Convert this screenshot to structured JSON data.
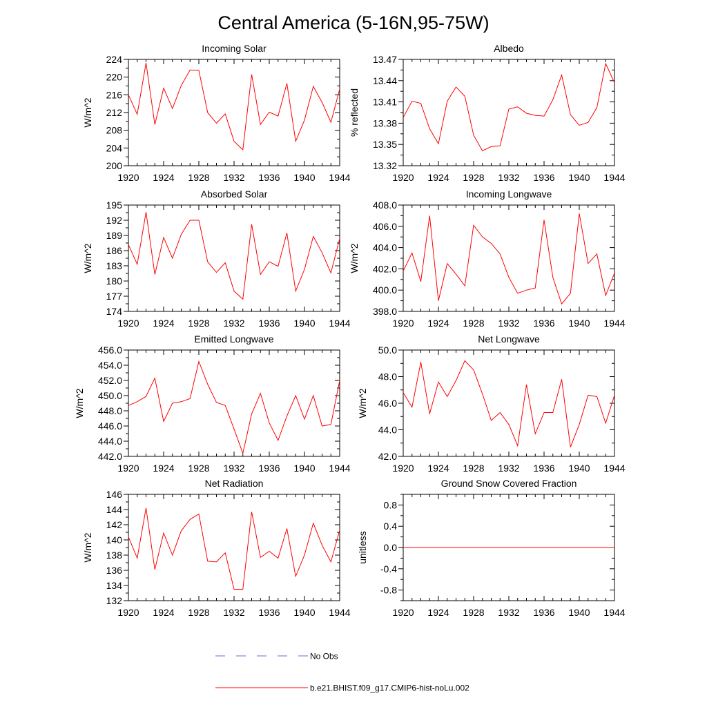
{
  "figure": {
    "title": "Central America (5-16N,95-75W)",
    "legend": [
      {
        "label": "No Obs",
        "style": "dashed",
        "color": "#5b6fd6"
      },
      {
        "label": "b.e21.BHIST.f09_g17.CMIP6-hist-noLu.002",
        "style": "solid",
        "color": "#ff0000"
      }
    ]
  },
  "chart_data": [
    {
      "type": "line",
      "title": "Incoming Solar",
      "ylabel": "W/m^2",
      "xlim": [
        1920,
        1944
      ],
      "ylim": [
        200,
        224
      ],
      "yticks": [
        200,
        204,
        208,
        212,
        216,
        220,
        224
      ],
      "ytick_labels": [
        "200",
        "204",
        "208",
        "212",
        "216",
        "220",
        "224"
      ],
      "xticks": [
        1920,
        1924,
        1928,
        1932,
        1936,
        1940,
        1944
      ],
      "xtick_labels": [
        "1920",
        "1924",
        "1928",
        "1932",
        "1936",
        "1940",
        "1944"
      ],
      "yaxis_side": "left",
      "series": [
        {
          "color": "#ff0000",
          "x": [
            1920,
            1921,
            1922,
            1923,
            1924,
            1925,
            1926,
            1927,
            1928,
            1929,
            1930,
            1931,
            1932,
            1933,
            1934,
            1935,
            1936,
            1937,
            1938,
            1939,
            1940,
            1941,
            1942,
            1943,
            1944
          ],
          "values": [
            216.0,
            211.6,
            223.2,
            209.3,
            217.5,
            212.9,
            218.1,
            221.6,
            221.5,
            212.0,
            209.6,
            211.7,
            205.5,
            203.6,
            220.6,
            209.3,
            212.1,
            211.2,
            218.6,
            205.5,
            210.3,
            217.9,
            214.3,
            209.8,
            217.3
          ]
        }
      ]
    },
    {
      "type": "line",
      "title": "Albedo",
      "ylabel": "% reflected",
      "xlim": [
        1920,
        1944
      ],
      "ylim": [
        13.32,
        13.47
      ],
      "yticks": [
        13.32,
        13.35,
        13.38,
        13.41,
        13.44,
        13.47
      ],
      "ytick_labels": [
        "13.32",
        "13.35",
        "13.38",
        "13.41",
        "13.44",
        "13.47"
      ],
      "xticks": [
        1920,
        1924,
        1928,
        1932,
        1936,
        1940,
        1944
      ],
      "xtick_labels": [
        "1920",
        "1924",
        "1928",
        "1932",
        "1936",
        "1940",
        "1944"
      ],
      "yaxis_side": "left",
      "series": [
        {
          "color": "#ff0000",
          "x": [
            1920,
            1921,
            1922,
            1923,
            1924,
            1925,
            1926,
            1927,
            1928,
            1929,
            1930,
            1931,
            1932,
            1933,
            1934,
            1935,
            1936,
            1937,
            1938,
            1939,
            1940,
            1941,
            1942,
            1943,
            1944
          ],
          "values": [
            13.388,
            13.411,
            13.408,
            13.372,
            13.351,
            13.411,
            13.431,
            13.418,
            13.363,
            13.341,
            13.347,
            13.348,
            13.4,
            13.403,
            13.394,
            13.391,
            13.39,
            13.413,
            13.448,
            13.392,
            13.377,
            13.381,
            13.402,
            13.464,
            13.437
          ]
        }
      ]
    },
    {
      "type": "line",
      "title": "Absorbed Solar",
      "ylabel": "W/m^2",
      "xlim": [
        1920,
        1944
      ],
      "ylim": [
        174,
        195
      ],
      "yticks": [
        174,
        177,
        180,
        183,
        186,
        189,
        192,
        195
      ],
      "ytick_labels": [
        "174",
        "177",
        "180",
        "183",
        "186",
        "189",
        "192",
        "195"
      ],
      "xticks": [
        1920,
        1924,
        1928,
        1932,
        1936,
        1940,
        1944
      ],
      "xtick_labels": [
        "1920",
        "1924",
        "1928",
        "1932",
        "1936",
        "1940",
        "1944"
      ],
      "yaxis_side": "left",
      "series": [
        {
          "color": "#ff0000",
          "x": [
            1920,
            1921,
            1922,
            1923,
            1924,
            1925,
            1926,
            1927,
            1928,
            1929,
            1930,
            1931,
            1932,
            1933,
            1934,
            1935,
            1936,
            1937,
            1938,
            1939,
            1940,
            1941,
            1942,
            1943,
            1944
          ],
          "values": [
            187.2,
            183.3,
            193.6,
            181.3,
            188.6,
            184.5,
            189.2,
            192.0,
            192.0,
            183.8,
            181.7,
            183.6,
            178.0,
            176.4,
            191.2,
            181.3,
            183.8,
            182.9,
            189.5,
            178.0,
            182.3,
            188.8,
            185.6,
            181.6,
            188.4
          ]
        }
      ]
    },
    {
      "type": "line",
      "title": "Incoming Longwave",
      "ylabel": "W/m^2",
      "xlim": [
        1920,
        1944
      ],
      "ylim": [
        398.0,
        408.0
      ],
      "yticks": [
        398,
        400,
        402,
        404,
        406,
        408
      ],
      "ytick_labels": [
        "398.0",
        "400.0",
        "402.0",
        "404.0",
        "406.0",
        "408.0"
      ],
      "xticks": [
        1920,
        1924,
        1928,
        1932,
        1936,
        1940,
        1944
      ],
      "xtick_labels": [
        "1920",
        "1924",
        "1928",
        "1932",
        "1936",
        "1940",
        "1944"
      ],
      "yaxis_side": "right",
      "series": [
        {
          "color": "#ff0000",
          "x": [
            1920,
            1921,
            1922,
            1923,
            1924,
            1925,
            1926,
            1927,
            1928,
            1929,
            1930,
            1931,
            1932,
            1933,
            1934,
            1935,
            1936,
            1937,
            1938,
            1939,
            1940,
            1941,
            1942,
            1943,
            1944
          ],
          "values": [
            401.8,
            403.5,
            400.8,
            407.0,
            399.0,
            402.5,
            401.5,
            400.4,
            406.1,
            405.0,
            404.4,
            403.4,
            401.2,
            399.7,
            400.0,
            400.2,
            406.6,
            401.2,
            398.7,
            399.7,
            407.2,
            402.5,
            403.4,
            399.5,
            401.6
          ]
        }
      ]
    },
    {
      "type": "line",
      "title": "Emitted Longwave",
      "ylabel": "W/m^2",
      "xlim": [
        1920,
        1944
      ],
      "ylim": [
        442.0,
        456.0
      ],
      "yticks": [
        442,
        444,
        446,
        448,
        450,
        452,
        454,
        456
      ],
      "ytick_labels": [
        "442.0",
        "444.0",
        "446.0",
        "448.0",
        "450.0",
        "452.0",
        "454.0",
        "456.0"
      ],
      "xticks": [
        1920,
        1924,
        1928,
        1932,
        1936,
        1940,
        1944
      ],
      "xtick_labels": [
        "1920",
        "1924",
        "1928",
        "1932",
        "1936",
        "1940",
        "1944"
      ],
      "yaxis_side": "left",
      "series": [
        {
          "color": "#ff0000",
          "x": [
            1920,
            1921,
            1922,
            1923,
            1924,
            1925,
            1926,
            1927,
            1928,
            1929,
            1930,
            1931,
            1932,
            1933,
            1934,
            1935,
            1936,
            1937,
            1938,
            1939,
            1940,
            1941,
            1942,
            1943,
            1944
          ],
          "values": [
            448.7,
            449.2,
            449.9,
            452.3,
            446.6,
            449.0,
            449.2,
            449.6,
            454.5,
            451.5,
            449.1,
            448.7,
            445.6,
            442.4,
            447.6,
            450.3,
            446.4,
            444.1,
            447.3,
            450.0,
            446.9,
            450.0,
            446.0,
            446.2,
            452.0
          ]
        }
      ]
    },
    {
      "type": "line",
      "title": "Net Longwave",
      "ylabel": "W/m^2",
      "xlim": [
        1920,
        1944
      ],
      "ylim": [
        42.0,
        50.0
      ],
      "yticks": [
        42,
        44,
        46,
        48,
        50
      ],
      "ytick_labels": [
        "42.0",
        "44.0",
        "46.0",
        "48.0",
        "50.0"
      ],
      "xticks": [
        1920,
        1924,
        1928,
        1932,
        1936,
        1940,
        1944
      ],
      "xtick_labels": [
        "1920",
        "1924",
        "1928",
        "1932",
        "1936",
        "1940",
        "1944"
      ],
      "yaxis_side": "left",
      "series": [
        {
          "color": "#ff0000",
          "x": [
            1920,
            1921,
            1922,
            1923,
            1924,
            1925,
            1926,
            1927,
            1928,
            1929,
            1930,
            1931,
            1932,
            1933,
            1934,
            1935,
            1936,
            1937,
            1938,
            1939,
            1940,
            1941,
            1942,
            1943,
            1944
          ],
          "values": [
            46.8,
            45.7,
            49.1,
            45.2,
            47.6,
            46.5,
            47.7,
            49.2,
            48.5,
            46.7,
            44.7,
            45.3,
            44.4,
            42.8,
            47.4,
            43.7,
            45.3,
            45.3,
            47.8,
            42.7,
            44.4,
            46.6,
            46.5,
            44.5,
            46.6
          ]
        }
      ]
    },
    {
      "type": "line",
      "title": "Net Radiation",
      "ylabel": "W/m^2",
      "xlim": [
        1920,
        1944
      ],
      "ylim": [
        132,
        146
      ],
      "yticks": [
        132,
        134,
        136,
        138,
        140,
        142,
        144,
        146
      ],
      "ytick_labels": [
        "132",
        "134",
        "136",
        "138",
        "140",
        "142",
        "144",
        "146"
      ],
      "xticks": [
        1920,
        1924,
        1928,
        1932,
        1936,
        1940,
        1944
      ],
      "xtick_labels": [
        "1920",
        "1924",
        "1928",
        "1932",
        "1936",
        "1940",
        "1944"
      ],
      "yaxis_side": "left",
      "series": [
        {
          "color": "#ff0000",
          "x": [
            1920,
            1921,
            1922,
            1923,
            1924,
            1925,
            1926,
            1927,
            1928,
            1929,
            1930,
            1931,
            1932,
            1933,
            1934,
            1935,
            1936,
            1937,
            1938,
            1939,
            1940,
            1941,
            1942,
            1943,
            1944
          ],
          "values": [
            140.4,
            137.6,
            144.2,
            136.1,
            140.9,
            138.0,
            141.2,
            142.7,
            143.4,
            137.2,
            137.1,
            138.3,
            133.5,
            133.5,
            143.7,
            137.7,
            138.5,
            137.6,
            141.5,
            135.2,
            138.0,
            142.2,
            139.3,
            137.1,
            141.3
          ]
        }
      ]
    },
    {
      "type": "line",
      "title": "Ground Snow Covered Fraction",
      "ylabel": "unitless",
      "xlim": [
        1920,
        1944
      ],
      "ylim": [
        -1.0,
        1.0
      ],
      "yticks": [
        -0.8,
        -0.4,
        0.0,
        0.4,
        0.8
      ],
      "ytick_labels": [
        "-0.8",
        "-0.4",
        "0.0",
        "0.4",
        "0.8"
      ],
      "xticks": [
        1920,
        1924,
        1928,
        1932,
        1936,
        1940,
        1944
      ],
      "xtick_labels": [
        "1920",
        "1924",
        "1928",
        "1932",
        "1936",
        "1940",
        "1944"
      ],
      "yaxis_side": "left",
      "series": [
        {
          "color": "#ff0000",
          "x": [
            1920,
            1944
          ],
          "values": [
            0.0,
            0.0
          ]
        }
      ]
    }
  ]
}
